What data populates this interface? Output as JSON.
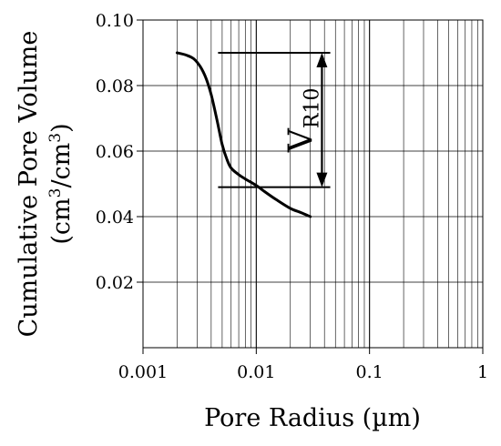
{
  "chart_data": {
    "type": "line",
    "title": "",
    "xlabel": "Pore Radius (µm)",
    "ylabel": {
      "line1": "Cumulative Pore Volume",
      "line2_prefix": "(cm",
      "line2_sup1": "3",
      "line2_mid": "/cm",
      "line2_sup2": "3",
      "line2_suffix": ")"
    },
    "x_scale": "log",
    "xlim": [
      0.001,
      1
    ],
    "ylim": [
      0,
      0.1
    ],
    "grid": true,
    "x_ticks": [
      0.001,
      0.01,
      0.1,
      1
    ],
    "x_tick_labels": [
      "0.001",
      "0.01",
      "0.1",
      "1"
    ],
    "y_ticks": [
      0.02,
      0.04,
      0.06,
      0.08,
      0.1
    ],
    "y_tick_labels": [
      "0.02",
      "0.04",
      "0.06",
      "0.08",
      "0.10"
    ],
    "series": [
      {
        "x": [
          0.002,
          0.0024,
          0.0028,
          0.0032,
          0.0036,
          0.004,
          0.0045,
          0.005,
          0.0055,
          0.006,
          0.007,
          0.008,
          0.01,
          0.012,
          0.015,
          0.02,
          0.025,
          0.03
        ],
        "y": [
          0.09,
          0.0893,
          0.0882,
          0.0858,
          0.0822,
          0.0772,
          0.0695,
          0.062,
          0.0575,
          0.0548,
          0.0528,
          0.0515,
          0.0495,
          0.0475,
          0.0452,
          0.0425,
          0.0412,
          0.04
        ]
      }
    ],
    "annotations": [
      {
        "id": "vr10-bracket",
        "x_start": 0.0046,
        "x_end": 0.045,
        "arrow_x": 0.038,
        "y_top": 0.09,
        "y_bottom": 0.049,
        "label_main": "V",
        "label_sub": "R10"
      }
    ]
  }
}
